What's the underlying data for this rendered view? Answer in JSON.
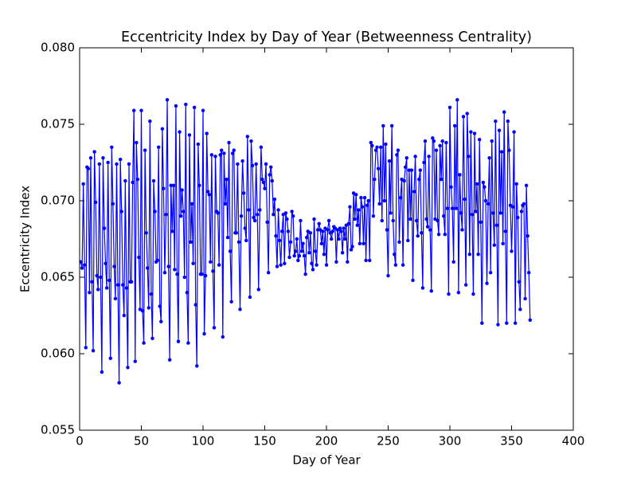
{
  "chart_data": {
    "type": "line",
    "title": "Eccentricity Index by Day of Year (Betweenness Centrality)",
    "x_label": "Day of Year",
    "y_label": "Eccentricity Index",
    "xlim": [
      0,
      400
    ],
    "xticks": [
      0,
      50,
      100,
      150,
      200,
      250,
      300,
      350,
      400
    ],
    "ylim": [
      0.055,
      0.08
    ],
    "yticks": [
      0.055,
      {
        "value": 0.06,
        "label": "0.060"
      },
      0.065,
      {
        "value": 0.07,
        "label": "0.070"
      },
      0.075,
      {
        "value": 0.08,
        "label": "0.080"
      }
    ],
    "grid": false,
    "series": [
      {
        "color": "#0000ff",
        "x": [
          1,
          2,
          3,
          4,
          5,
          6,
          7,
          8,
          9,
          10,
          11,
          12,
          13,
          14,
          15,
          16,
          17,
          18,
          19,
          20,
          21,
          22,
          23,
          24,
          25,
          26,
          27,
          28,
          29,
          30,
          31,
          32,
          33,
          34,
          35,
          36,
          37,
          38,
          39,
          40,
          41,
          42,
          43,
          44,
          45,
          46,
          47,
          48,
          49,
          50,
          51,
          52,
          53,
          54,
          55,
          56,
          57,
          58,
          59,
          60,
          61,
          62,
          63,
          64,
          65,
          66,
          67,
          68,
          69,
          70,
          71,
          72,
          73,
          74,
          75,
          76,
          77,
          78,
          79,
          80,
          81,
          82,
          83,
          84,
          85,
          86,
          87,
          88,
          89,
          90,
          91,
          92,
          93,
          94,
          95,
          96,
          97,
          98,
          99,
          100,
          101,
          102,
          103,
          104,
          105,
          106,
          107,
          108,
          109,
          110,
          111,
          112,
          113,
          114,
          115,
          116,
          117,
          118,
          119,
          120,
          121,
          122,
          123,
          124,
          125,
          126,
          127,
          128,
          129,
          130,
          131,
          132,
          133,
          134,
          135,
          136,
          137,
          138,
          139,
          140,
          141,
          142,
          143,
          144,
          145,
          146,
          147,
          148,
          149,
          150,
          151,
          152,
          153,
          154,
          155,
          156,
          157,
          158,
          159,
          160,
          161,
          162,
          163,
          164,
          165,
          166,
          167,
          168,
          169,
          170,
          171,
          172,
          173,
          174,
          175,
          176,
          177,
          178,
          179,
          180,
          181,
          182,
          183,
          184,
          185,
          186,
          187,
          188,
          189,
          190,
          191,
          192,
          193,
          194,
          195,
          196,
          197,
          198,
          199,
          200,
          201,
          202,
          203,
          204,
          205,
          206,
          207,
          208,
          209,
          210,
          211,
          212,
          213,
          214,
          215,
          216,
          217,
          218,
          219,
          220,
          221,
          222,
          223,
          224,
          225,
          226,
          227,
          228,
          229,
          230,
          231,
          232,
          233,
          234,
          235,
          236,
          237,
          238,
          239,
          240,
          241,
          242,
          243,
          244,
          245,
          246,
          247,
          248,
          249,
          250,
          251,
          252,
          253,
          254,
          255,
          256,
          257,
          258,
          259,
          260,
          261,
          262,
          263,
          264,
          265,
          266,
          267,
          268,
          269,
          270,
          271,
          272,
          273,
          274,
          275,
          276,
          277,
          278,
          279,
          280,
          281,
          282,
          283,
          284,
          285,
          286,
          287,
          288,
          289,
          290,
          291,
          292,
          293,
          294,
          295,
          296,
          297,
          298,
          299,
          300,
          301,
          302,
          303,
          304,
          305,
          306,
          307,
          308,
          309,
          310,
          311,
          312,
          313,
          314,
          315,
          316,
          317,
          318,
          319,
          320,
          321,
          322,
          323,
          324,
          325,
          326,
          327,
          328,
          329,
          330,
          331,
          332,
          333,
          334,
          335,
          336,
          337,
          338,
          339,
          340,
          341,
          342,
          343,
          344,
          345,
          346,
          347,
          348,
          349,
          350,
          351,
          352,
          353,
          354,
          355,
          356,
          357,
          358,
          359,
          360,
          361,
          362,
          363,
          364,
          365
        ],
        "values": [
          0.066,
          0.0656,
          0.0711,
          0.0658,
          0.0604,
          0.0722,
          0.0721,
          0.064,
          0.0728,
          0.0647,
          0.0602,
          0.0732,
          0.0699,
          0.0651,
          0.0642,
          0.0724,
          0.065,
          0.0588,
          0.0728,
          0.0682,
          0.0659,
          0.0643,
          0.0725,
          0.0648,
          0.0597,
          0.0735,
          0.0698,
          0.0657,
          0.0636,
          0.0724,
          0.0645,
          0.0581,
          0.0727,
          0.0693,
          0.0645,
          0.0625,
          0.0713,
          0.0643,
          0.0591,
          0.0724,
          0.0647,
          0.0647,
          0.0712,
          0.0759,
          0.0595,
          0.0738,
          0.0714,
          0.0663,
          0.0629,
          0.0759,
          0.0628,
          0.0607,
          0.0733,
          0.0679,
          0.0656,
          0.063,
          0.0752,
          0.0639,
          0.061,
          0.0713,
          0.0693,
          0.066,
          0.0661,
          0.0735,
          0.0631,
          0.0621,
          0.0747,
          0.0708,
          0.0653,
          0.0691,
          0.0766,
          0.0657,
          0.0596,
          0.071,
          0.068,
          0.071,
          0.0655,
          0.0762,
          0.0652,
          0.0608,
          0.0745,
          0.069,
          0.0707,
          0.0693,
          0.065,
          0.0763,
          0.064,
          0.0607,
          0.0743,
          0.0673,
          0.0698,
          0.0659,
          0.0761,
          0.0632,
          0.0592,
          0.0737,
          0.071,
          0.0652,
          0.0652,
          0.0759,
          0.0613,
          0.0651,
          0.0744,
          0.0706,
          0.0704,
          0.066,
          0.073,
          0.0654,
          0.0617,
          0.0729,
          0.0693,
          0.0692,
          0.0658,
          0.073,
          0.0733,
          0.0611,
          0.0731,
          0.0698,
          0.0714,
          0.0676,
          0.0738,
          0.0667,
          0.0634,
          0.0731,
          0.0733,
          0.0679,
          0.0679,
          0.0724,
          0.0673,
          0.0629,
          0.069,
          0.0726,
          0.0705,
          0.0682,
          0.0674,
          0.0742,
          0.0694,
          0.0637,
          0.0739,
          0.0723,
          0.0689,
          0.0687,
          0.0724,
          0.0691,
          0.0642,
          0.0694,
          0.0735,
          0.0714,
          0.0712,
          0.0708,
          0.0724,
          0.0686,
          0.0653,
          0.0717,
          0.0722,
          0.0713,
          0.0691,
          0.0701,
          0.0677,
          0.0657,
          0.0694,
          0.0674,
          0.0658,
          0.068,
          0.0691,
          0.0659,
          0.0692,
          0.0688,
          0.068,
          0.0663,
          0.0673,
          0.0693,
          0.069,
          0.0664,
          0.0667,
          0.0675,
          0.0661,
          0.0664,
          0.0687,
          0.0667,
          0.0672,
          0.0664,
          0.0652,
          0.0676,
          0.068,
          0.0666,
          0.0679,
          0.0659,
          0.0655,
          0.0688,
          0.0667,
          0.0658,
          0.0681,
          0.0685,
          0.0681,
          0.0672,
          0.068,
          0.0665,
          0.0682,
          0.0658,
          0.0681,
          0.0687,
          0.0679,
          0.0675,
          0.068,
          0.0683,
          0.0682,
          0.066,
          0.0681,
          0.0675,
          0.0682,
          0.068,
          0.0666,
          0.0682,
          0.0675,
          0.0684,
          0.066,
          0.0685,
          0.0696,
          0.0668,
          0.067,
          0.0705,
          0.0688,
          0.0704,
          0.0684,
          0.0694,
          0.0672,
          0.0702,
          0.0696,
          0.0672,
          0.0702,
          0.0661,
          0.0697,
          0.07,
          0.0661,
          0.0738,
          0.0736,
          0.069,
          0.0714,
          0.0733,
          0.0735,
          0.0721,
          0.0698,
          0.0735,
          0.0687,
          0.0749,
          0.07,
          0.0737,
          0.0681,
          0.0651,
          0.0726,
          0.0692,
          0.0749,
          0.0687,
          0.0665,
          0.0658,
          0.073,
          0.0733,
          0.0673,
          0.0702,
          0.0714,
          0.0658,
          0.0713,
          0.0722,
          0.0728,
          0.0674,
          0.072,
          0.0688,
          0.072,
          0.0648,
          0.0706,
          0.0729,
          0.0687,
          0.0677,
          0.0714,
          0.072,
          0.0679,
          0.0643,
          0.0725,
          0.0739,
          0.0688,
          0.0683,
          0.0729,
          0.0681,
          0.0641,
          0.0741,
          0.0739,
          0.0688,
          0.0733,
          0.0687,
          0.0678,
          0.0736,
          0.0714,
          0.0739,
          0.069,
          0.0678,
          0.0738,
          0.0695,
          0.0639,
          0.0761,
          0.0709,
          0.0695,
          0.066,
          0.0749,
          0.0695,
          0.0766,
          0.064,
          0.0717,
          0.0692,
          0.0681,
          0.0755,
          0.0701,
          0.0645,
          0.0757,
          0.0729,
          0.0665,
          0.0745,
          0.0691,
          0.0639,
          0.0744,
          0.0693,
          0.0711,
          0.0665,
          0.074,
          0.0686,
          0.062,
          0.0712,
          0.0709,
          0.07,
          0.0646,
          0.0698,
          0.0728,
          0.0653,
          0.0739,
          0.0692,
          0.0671,
          0.0752,
          0.0684,
          0.0619,
          0.0746,
          0.0692,
          0.0732,
          0.0672,
          0.0758,
          0.068,
          0.062,
          0.0752,
          0.0733,
          0.0697,
          0.0667,
          0.0696,
          0.0745,
          0.062,
          0.0711,
          0.0689,
          0.0647,
          0.0629,
          0.0693,
          0.0697,
          0.0698,
          0.0636,
          0.071,
          0.0677,
          0.0653,
          0.0622
        ]
      }
    ]
  }
}
